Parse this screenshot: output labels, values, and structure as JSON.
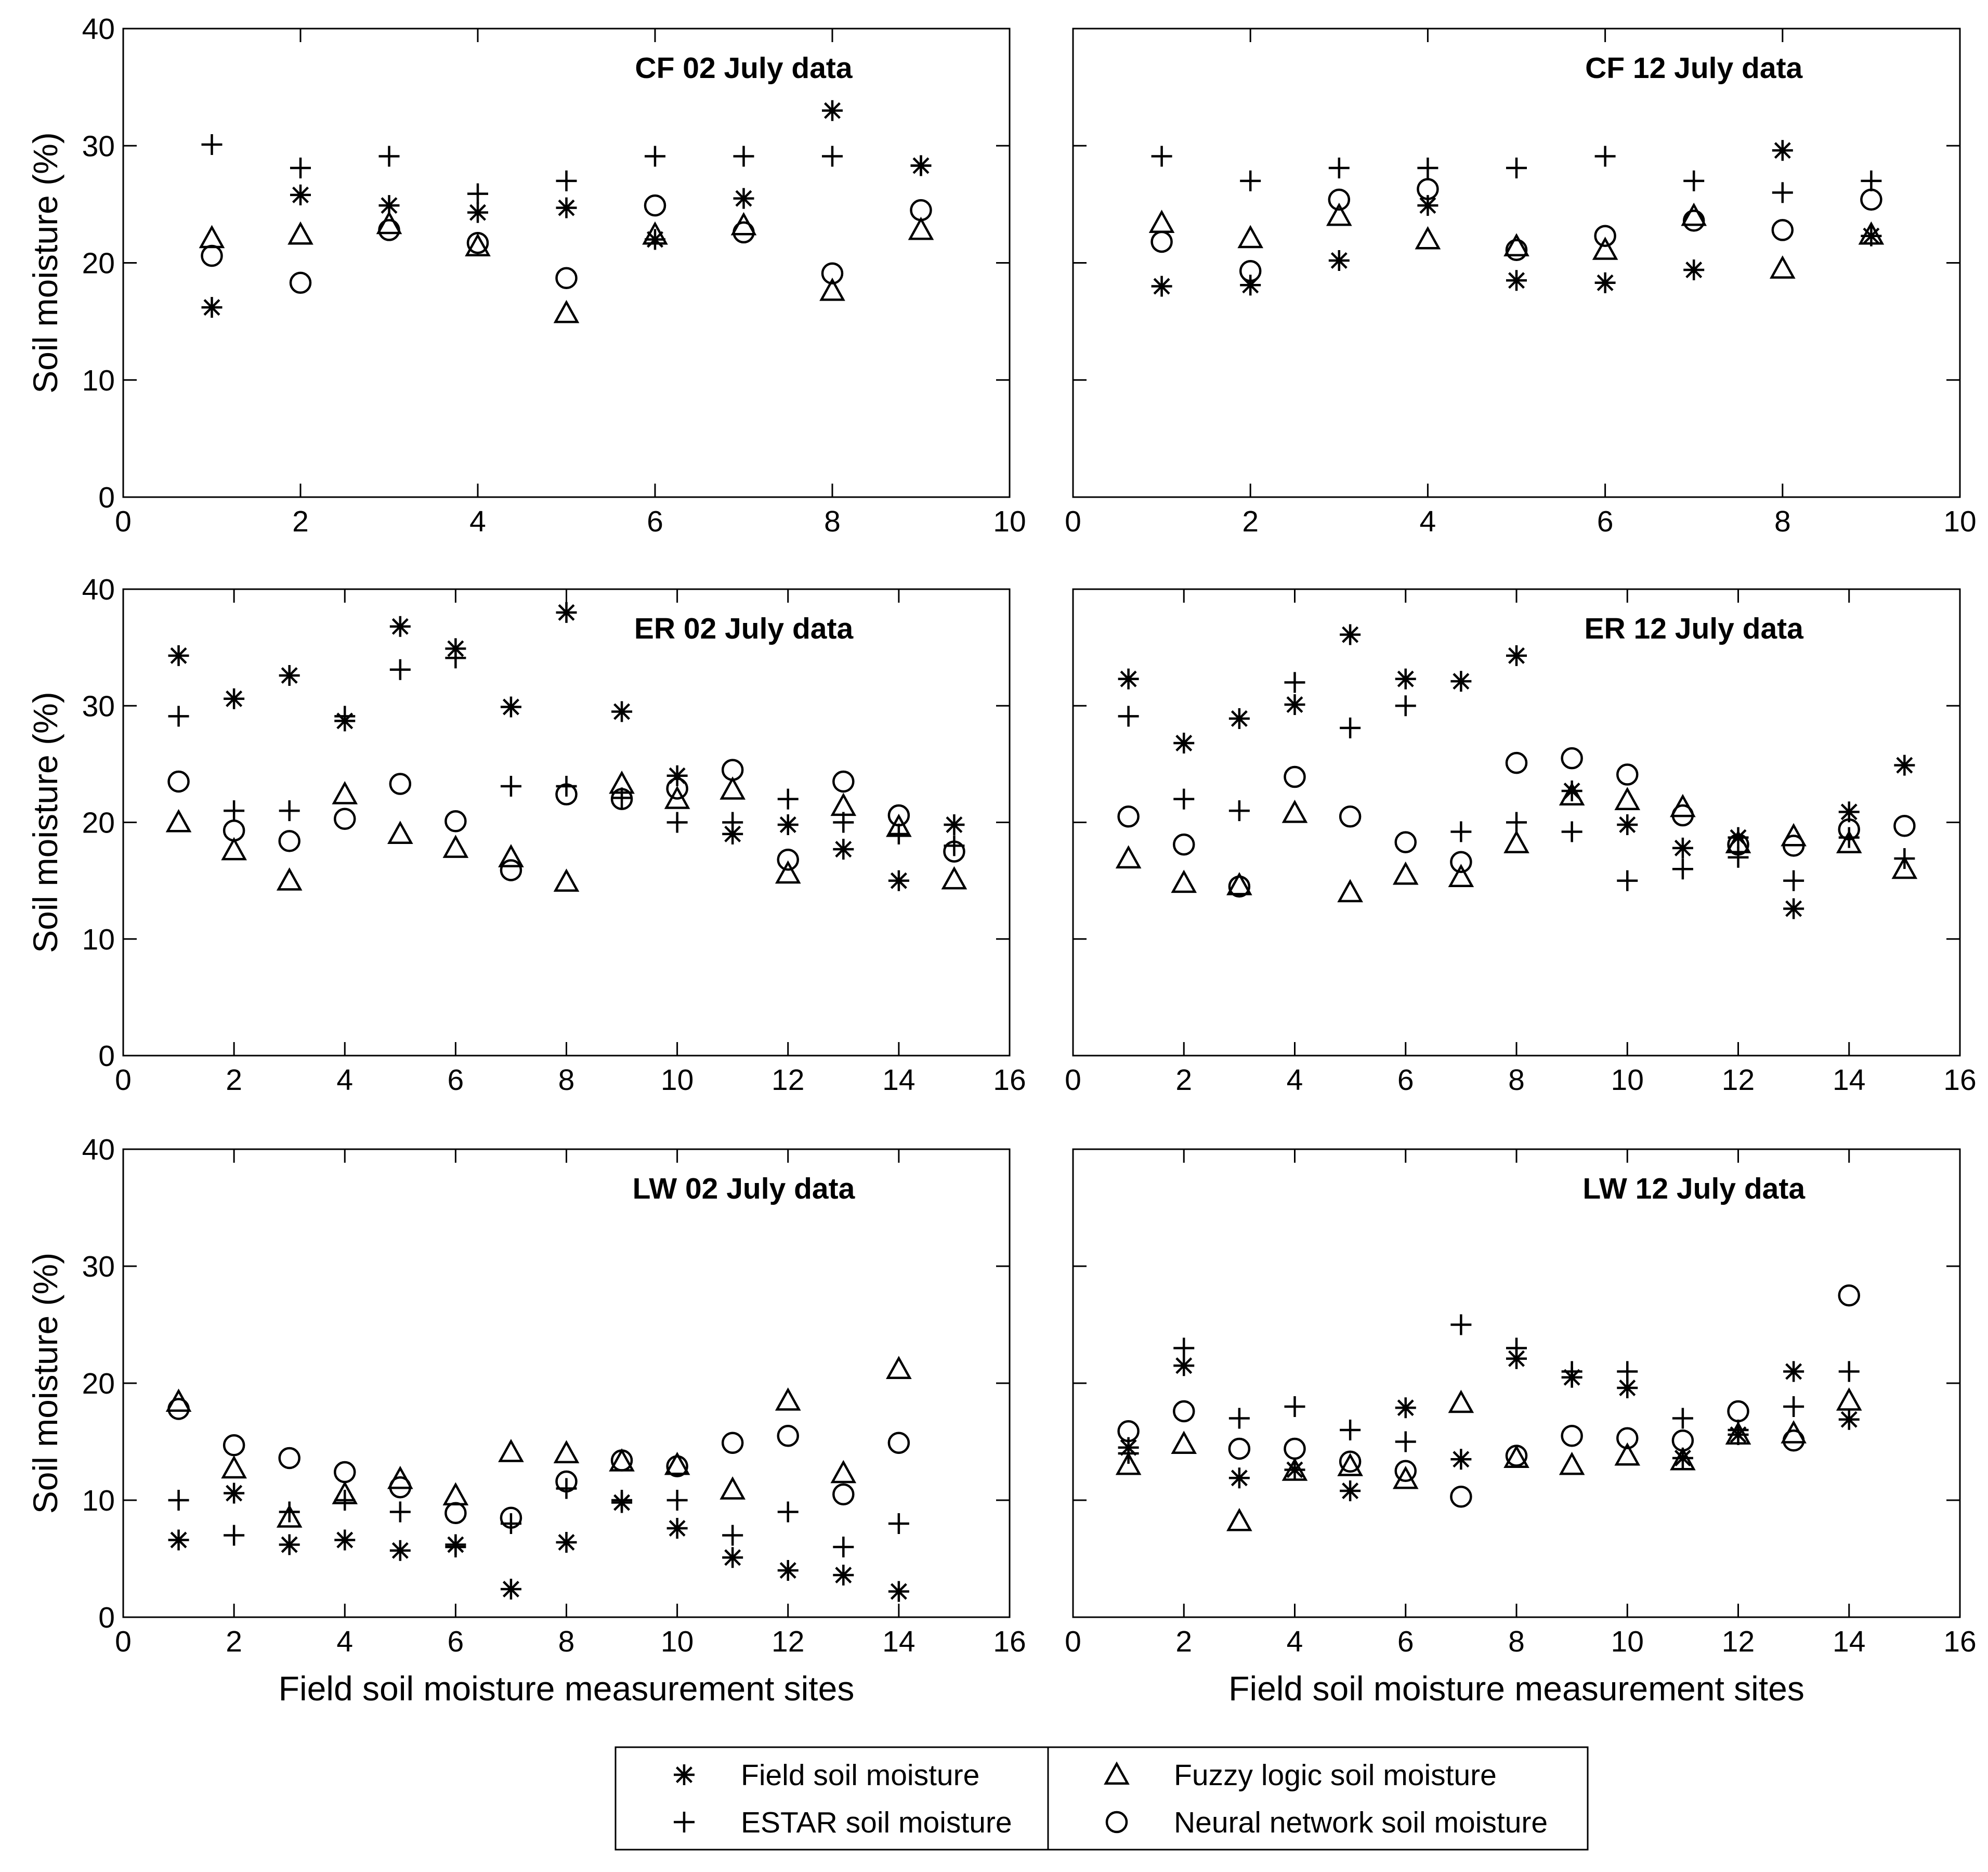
{
  "chart_data": {
    "type": "scatter",
    "ylabel": "Soil moisture (%)",
    "xlabel": "Field soil moisture measurement sites",
    "legend": [
      {
        "key": "field",
        "label": "Field soil moisture",
        "marker": "asterisk"
      },
      {
        "key": "estar",
        "label": "ESTAR soil moisture",
        "marker": "plus"
      },
      {
        "key": "fuzzy",
        "label": "Fuzzy logic soil moisture",
        "marker": "triangle"
      },
      {
        "key": "neural",
        "label": "Neural network soil moisture",
        "marker": "circle"
      }
    ],
    "panels": [
      {
        "title": "CF 02 July data",
        "xlim": [
          0,
          10
        ],
        "xticks": [
          0,
          2,
          4,
          6,
          8,
          10
        ],
        "ylim": [
          0,
          40
        ],
        "yticks": [
          0,
          10,
          20,
          30,
          40
        ],
        "show_ylabel": true,
        "show_xlabel": false,
        "sites": [
          1,
          2,
          3,
          4,
          5,
          6,
          7,
          8,
          9
        ],
        "series": {
          "field": [
            16.2,
            25.8,
            24.9,
            24.3,
            24.7,
            22.0,
            25.5,
            33.0,
            28.3
          ],
          "estar": [
            30.1,
            28.1,
            29.1,
            25.9,
            27.0,
            29.1,
            29.1,
            29.1,
            28.3
          ],
          "fuzzy": [
            22.1,
            22.4,
            23.3,
            21.4,
            15.7,
            22.4,
            23.2,
            17.6,
            22.8
          ],
          "neural": [
            20.6,
            18.3,
            22.8,
            21.7,
            18.7,
            24.9,
            22.6,
            19.1,
            24.5
          ]
        }
      },
      {
        "title": "CF 12 July data",
        "xlim": [
          0,
          10
        ],
        "xticks": [
          0,
          2,
          4,
          6,
          8,
          10
        ],
        "ylim": [
          0,
          40
        ],
        "yticks": [
          0,
          10,
          20,
          30,
          40
        ],
        "show_ylabel": false,
        "show_xlabel": false,
        "sites": [
          1,
          2,
          3,
          4,
          5,
          6,
          7,
          8,
          9
        ],
        "series": {
          "field": [
            18.0,
            18.1,
            20.2,
            24.9,
            18.5,
            18.3,
            19.4,
            29.6,
            22.3
          ],
          "estar": [
            29.1,
            27.0,
            28.1,
            28.1,
            28.1,
            29.1,
            27.0,
            26.0,
            27.0
          ],
          "fuzzy": [
            23.4,
            22.1,
            24.0,
            22.0,
            21.4,
            21.1,
            24.0,
            19.5,
            22.4
          ],
          "neural": [
            21.8,
            19.3,
            25.4,
            26.3,
            21.1,
            22.3,
            23.6,
            22.8,
            25.4
          ]
        }
      },
      {
        "title": "ER 02 July data",
        "xlim": [
          0,
          16
        ],
        "xticks": [
          0,
          2,
          4,
          6,
          8,
          10,
          12,
          14,
          16
        ],
        "ylim": [
          0,
          40
        ],
        "yticks": [
          0,
          10,
          20,
          30,
          40
        ],
        "show_ylabel": true,
        "show_xlabel": false,
        "sites": [
          1,
          2,
          3,
          4,
          5,
          6,
          7,
          8,
          9,
          10,
          11,
          12,
          13,
          14,
          15
        ],
        "series": {
          "field": [
            34.3,
            30.6,
            32.6,
            28.7,
            36.8,
            34.9,
            29.9,
            38.0,
            29.5,
            24.0,
            19.0,
            19.8,
            17.7,
            15.0,
            19.8
          ],
          "estar": [
            29.1,
            21.0,
            21.0,
            29.1,
            33.1,
            34.1,
            23.1,
            23.1,
            22.1,
            20.0,
            20.0,
            22.0,
            20.0,
            19.0,
            18.0
          ],
          "fuzzy": [
            20.0,
            17.6,
            15.0,
            22.4,
            19.0,
            17.8,
            17.0,
            14.9,
            23.3,
            22.0,
            22.8,
            15.6,
            21.4,
            19.6,
            15.1
          ],
          "neural": [
            23.5,
            19.3,
            18.4,
            20.3,
            23.3,
            20.1,
            15.9,
            22.4,
            22.0,
            22.9,
            24.5,
            16.8,
            23.5,
            20.6,
            17.5
          ]
        }
      },
      {
        "title": "ER 12 July data",
        "xlim": [
          0,
          16
        ],
        "xticks": [
          0,
          2,
          4,
          6,
          8,
          10,
          12,
          14,
          16
        ],
        "ylim": [
          0,
          40
        ],
        "yticks": [
          0,
          10,
          20,
          30,
          40
        ],
        "show_ylabel": false,
        "show_xlabel": false,
        "sites": [
          1,
          2,
          3,
          4,
          5,
          6,
          7,
          8,
          9,
          10,
          11,
          12,
          13,
          14,
          15
        ],
        "series": {
          "field": [
            32.3,
            26.8,
            28.9,
            30.1,
            36.1,
            32.3,
            32.1,
            34.3,
            22.7,
            19.8,
            17.8,
            18.7,
            12.6,
            20.9,
            24.9
          ],
          "estar": [
            29.1,
            22.0,
            21.0,
            32.0,
            28.1,
            30.0,
            19.2,
            20.0,
            19.2,
            15.0,
            16.0,
            17.0,
            15.0,
            18.7,
            16.9
          ],
          "fuzzy": [
            16.9,
            14.8,
            14.6,
            20.8,
            14.0,
            15.5,
            15.3,
            18.2,
            22.3,
            21.9,
            21.3,
            18.2,
            18.8,
            18.2,
            16.0
          ],
          "neural": [
            20.5,
            18.1,
            14.5,
            23.9,
            20.5,
            18.3,
            16.6,
            25.1,
            25.5,
            24.1,
            20.6,
            18.1,
            18.0,
            19.4,
            19.7
          ]
        }
      },
      {
        "title": "LW 02 July data",
        "xlim": [
          0,
          16
        ],
        "xticks": [
          0,
          2,
          4,
          6,
          8,
          10,
          12,
          14,
          16
        ],
        "ylim": [
          0,
          40
        ],
        "yticks": [
          0,
          10,
          20,
          30,
          40
        ],
        "show_ylabel": true,
        "show_xlabel": true,
        "sites": [
          1,
          2,
          3,
          4,
          5,
          6,
          7,
          8,
          9,
          10,
          11,
          12,
          13,
          14
        ],
        "series": {
          "field": [
            6.6,
            10.6,
            6.2,
            6.6,
            5.7,
            6.2,
            2.4,
            6.4,
            9.8,
            7.6,
            5.1,
            4.0,
            3.6,
            2.2
          ],
          "estar": [
            10.0,
            7.0,
            9.0,
            10.0,
            9.0,
            6.0,
            8.0,
            11.0,
            10.0,
            10.0,
            7.0,
            9.0,
            6.0,
            8.0
          ],
          "fuzzy": [
            18.4,
            12.7,
            8.5,
            10.5,
            11.8,
            10.4,
            14.1,
            14.0,
            13.3,
            13.0,
            10.9,
            18.5,
            12.3,
            21.2
          ],
          "neural": [
            17.8,
            14.7,
            13.6,
            12.4,
            11.1,
            8.9,
            8.5,
            11.6,
            13.4,
            12.9,
            14.9,
            15.5,
            10.5,
            14.9
          ]
        }
      },
      {
        "title": "LW 12 July data",
        "xlim": [
          0,
          16
        ],
        "xticks": [
          0,
          2,
          4,
          6,
          8,
          10,
          12,
          14,
          16
        ],
        "ylim": [
          0,
          40
        ],
        "yticks": [
          0,
          10,
          20,
          30,
          40
        ],
        "show_ylabel": false,
        "show_xlabel": true,
        "sites": [
          1,
          2,
          3,
          4,
          5,
          6,
          7,
          8,
          9,
          10,
          11,
          12,
          13,
          14
        ],
        "series": {
          "field": [
            14.5,
            21.5,
            11.9,
            12.6,
            10.8,
            17.9,
            13.5,
            22.1,
            20.5,
            19.6,
            13.6,
            15.6,
            21.0,
            16.9
          ],
          "estar": [
            14.0,
            23.0,
            17.0,
            18.0,
            16.0,
            15.0,
            25.0,
            23.0,
            21.0,
            21.0,
            17.0,
            16.0,
            18.0,
            21.0
          ],
          "fuzzy": [
            13.0,
            14.8,
            8.2,
            12.5,
            12.9,
            11.8,
            18.3,
            13.6,
            13.0,
            13.8,
            13.4,
            15.6,
            15.7,
            18.5
          ],
          "neural": [
            15.9,
            17.6,
            14.4,
            14.4,
            13.3,
            12.5,
            10.3,
            13.8,
            15.5,
            15.3,
            15.1,
            17.6,
            15.1,
            27.5
          ]
        }
      }
    ]
  }
}
